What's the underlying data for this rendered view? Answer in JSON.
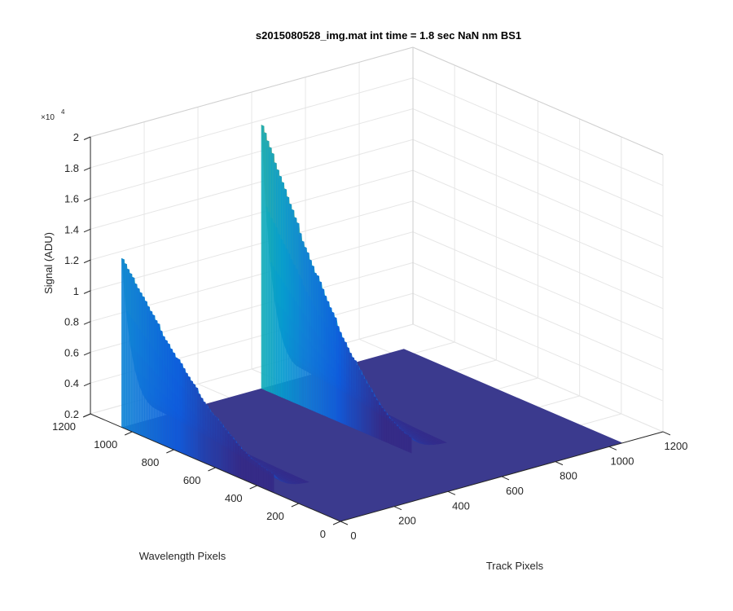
{
  "chart_data": {
    "type": "surface3d",
    "title": "s2015080528_img.mat int time = 1.8 sec  NaN nm BS1",
    "xlabel": "Track Pixels",
    "ylabel": "Wavelength Pixels",
    "zlabel": "Signal (ADU)",
    "z_exponent_label": "×10",
    "z_exponent_power": "4",
    "xlim": [
      0,
      1200
    ],
    "ylim": [
      0,
      1200
    ],
    "zlim": [
      0.2,
      2
    ],
    "x_ticks": [
      "0",
      "200",
      "400",
      "600",
      "800",
      "1000",
      "1200"
    ],
    "y_ticks": [
      "0",
      "200",
      "400",
      "600",
      "800",
      "1000",
      "1200"
    ],
    "z_ticks": [
      "0.2",
      "0.4",
      "0.6",
      "0.8",
      "1",
      "1.2",
      "1.4",
      "1.6",
      "1.8",
      "2"
    ],
    "grid": true,
    "colormap": "parula",
    "baseline_signal": 2000,
    "surface_extent": {
      "x": [
        0,
        1050
      ],
      "y": [
        0,
        1050
      ]
    },
    "ridges": [
      {
        "track_pixel": 0,
        "wavelength_range": [
          320,
          1050
        ],
        "peak_signal": 13400,
        "edge_signal": 3200
      },
      {
        "track_pixel": 520,
        "wavelength_range": [
          330,
          1050
        ],
        "peak_signal": 19800,
        "edge_signal": 3000
      }
    ],
    "colors": {
      "background": "#ffffff",
      "axis": "#262626",
      "grid": "#e6e6e6",
      "floor": "#3b3a8e"
    }
  }
}
